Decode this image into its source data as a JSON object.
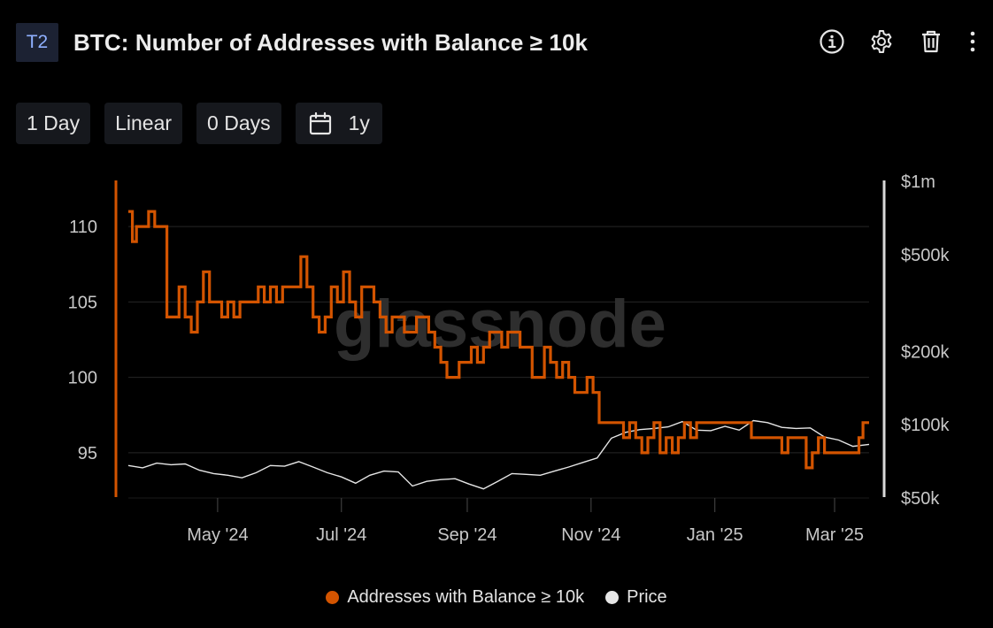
{
  "header": {
    "badge": "T2",
    "title": "BTC: Number of Addresses with Balance ≥ 10k",
    "actions": [
      "info-icon",
      "gear-icon",
      "trash-icon",
      "more-vertical-icon"
    ]
  },
  "toolbar": {
    "resolution": "1 Day",
    "scale": "Linear",
    "average": "0 Days",
    "range": "1y",
    "range_icon": "calendar-icon"
  },
  "watermark": "glassnode",
  "colors": {
    "background": "#000000",
    "addresses": "#d35400",
    "price": "#e6e6e6",
    "grid": "#262626",
    "axis_text": "#c8c8c8"
  },
  "chart_data": {
    "type": "line",
    "x_ticks": [
      "May '24",
      "Jul '24",
      "Sep '24",
      "Nov '24",
      "Jan '25",
      "Mar '25"
    ],
    "y_left": {
      "ticks": [
        95,
        100,
        105,
        110
      ],
      "range": [
        92,
        113
      ]
    },
    "y_right": {
      "scale": "log",
      "ticks": [
        "$50k",
        "$100k",
        "$200k",
        "$500k",
        "$1m"
      ],
      "tick_values": [
        50000,
        100000,
        200000,
        500000,
        1000000
      ],
      "range": [
        50000,
        1000000
      ]
    },
    "x_range": [
      "2024-03-18",
      "2025-03-18"
    ],
    "series": [
      {
        "name": "Addresses with Balance ≥ 10k",
        "axis": "left",
        "points": [
          [
            "2024-03-18",
            111
          ],
          [
            "2024-03-20",
            109
          ],
          [
            "2024-03-22",
            110
          ],
          [
            "2024-03-25",
            110
          ],
          [
            "2024-03-28",
            111
          ],
          [
            "2024-03-31",
            110
          ],
          [
            "2024-04-03",
            110
          ],
          [
            "2024-04-06",
            104
          ],
          [
            "2024-04-09",
            104
          ],
          [
            "2024-04-12",
            106
          ],
          [
            "2024-04-15",
            104
          ],
          [
            "2024-04-18",
            103
          ],
          [
            "2024-04-21",
            105
          ],
          [
            "2024-04-24",
            107
          ],
          [
            "2024-04-27",
            105
          ],
          [
            "2024-04-30",
            105
          ],
          [
            "2024-05-03",
            104
          ],
          [
            "2024-05-06",
            105
          ],
          [
            "2024-05-09",
            104
          ],
          [
            "2024-05-12",
            105
          ],
          [
            "2024-05-15",
            105
          ],
          [
            "2024-05-18",
            105
          ],
          [
            "2024-05-21",
            106
          ],
          [
            "2024-05-24",
            105
          ],
          [
            "2024-05-27",
            106
          ],
          [
            "2024-05-30",
            105
          ],
          [
            "2024-06-02",
            106
          ],
          [
            "2024-06-05",
            106
          ],
          [
            "2024-06-08",
            106
          ],
          [
            "2024-06-11",
            108
          ],
          [
            "2024-06-14",
            106
          ],
          [
            "2024-06-17",
            104
          ],
          [
            "2024-06-20",
            103
          ],
          [
            "2024-06-23",
            104
          ],
          [
            "2024-06-26",
            106
          ],
          [
            "2024-06-29",
            105
          ],
          [
            "2024-07-02",
            107
          ],
          [
            "2024-07-05",
            105
          ],
          [
            "2024-07-08",
            104
          ],
          [
            "2024-07-11",
            106
          ],
          [
            "2024-07-14",
            106
          ],
          [
            "2024-07-17",
            105
          ],
          [
            "2024-07-20",
            104
          ],
          [
            "2024-07-23",
            103
          ],
          [
            "2024-07-26",
            104
          ],
          [
            "2024-07-29",
            104
          ],
          [
            "2024-08-01",
            103
          ],
          [
            "2024-08-04",
            103
          ],
          [
            "2024-08-07",
            104
          ],
          [
            "2024-08-10",
            104
          ],
          [
            "2024-08-13",
            103
          ],
          [
            "2024-08-16",
            102
          ],
          [
            "2024-08-19",
            101
          ],
          [
            "2024-08-22",
            100
          ],
          [
            "2024-08-25",
            100
          ],
          [
            "2024-08-28",
            101
          ],
          [
            "2024-08-31",
            101
          ],
          [
            "2024-09-03",
            102
          ],
          [
            "2024-09-06",
            101
          ],
          [
            "2024-09-09",
            102
          ],
          [
            "2024-09-12",
            103
          ],
          [
            "2024-09-15",
            103
          ],
          [
            "2024-09-18",
            102
          ],
          [
            "2024-09-21",
            103
          ],
          [
            "2024-09-24",
            103
          ],
          [
            "2024-09-27",
            102
          ],
          [
            "2024-09-30",
            102
          ],
          [
            "2024-10-03",
            100
          ],
          [
            "2024-10-06",
            100
          ],
          [
            "2024-10-09",
            102
          ],
          [
            "2024-10-12",
            101
          ],
          [
            "2024-10-15",
            100
          ],
          [
            "2024-10-18",
            101
          ],
          [
            "2024-10-21",
            100
          ],
          [
            "2024-10-24",
            99
          ],
          [
            "2024-10-27",
            99
          ],
          [
            "2024-10-30",
            100
          ],
          [
            "2024-11-02",
            99
          ],
          [
            "2024-11-05",
            97
          ],
          [
            "2024-11-08",
            97
          ],
          [
            "2024-11-11",
            97
          ],
          [
            "2024-11-14",
            97
          ],
          [
            "2024-11-17",
            96
          ],
          [
            "2024-11-20",
            97
          ],
          [
            "2024-11-23",
            96
          ],
          [
            "2024-11-26",
            95
          ],
          [
            "2024-11-29",
            96
          ],
          [
            "2024-12-02",
            97
          ],
          [
            "2024-12-05",
            95
          ],
          [
            "2024-12-08",
            96
          ],
          [
            "2024-12-11",
            95
          ],
          [
            "2024-12-14",
            96
          ],
          [
            "2024-12-17",
            97
          ],
          [
            "2024-12-20",
            96
          ],
          [
            "2024-12-23",
            97
          ],
          [
            "2024-12-26",
            97
          ],
          [
            "2024-12-29",
            97
          ],
          [
            "2025-01-01",
            97
          ],
          [
            "2025-01-04",
            97
          ],
          [
            "2025-01-07",
            97
          ],
          [
            "2025-01-10",
            97
          ],
          [
            "2025-01-13",
            97
          ],
          [
            "2025-01-16",
            97
          ],
          [
            "2025-01-19",
            96
          ],
          [
            "2025-01-22",
            96
          ],
          [
            "2025-01-25",
            96
          ],
          [
            "2025-01-28",
            96
          ],
          [
            "2025-01-31",
            96
          ],
          [
            "2025-02-03",
            95
          ],
          [
            "2025-02-06",
            96
          ],
          [
            "2025-02-09",
            96
          ],
          [
            "2025-02-12",
            96
          ],
          [
            "2025-02-15",
            94
          ],
          [
            "2025-02-18",
            95
          ],
          [
            "2025-02-21",
            96
          ],
          [
            "2025-02-24",
            95
          ],
          [
            "2025-02-27",
            95
          ],
          [
            "2025-03-02",
            95
          ],
          [
            "2025-03-05",
            95
          ],
          [
            "2025-03-08",
            95
          ],
          [
            "2025-03-11",
            95
          ],
          [
            "2025-03-13",
            96
          ],
          [
            "2025-03-15",
            97
          ],
          [
            "2025-03-18",
            97
          ]
        ]
      },
      {
        "name": "Price",
        "axis": "right",
        "points": [
          [
            "2024-03-18",
            68000
          ],
          [
            "2024-03-25",
            66500
          ],
          [
            "2024-04-01",
            69500
          ],
          [
            "2024-04-08",
            68500
          ],
          [
            "2024-04-15",
            69000
          ],
          [
            "2024-04-22",
            65000
          ],
          [
            "2024-04-29",
            63000
          ],
          [
            "2024-05-06",
            62000
          ],
          [
            "2024-05-13",
            60500
          ],
          [
            "2024-05-20",
            63500
          ],
          [
            "2024-05-27",
            68000
          ],
          [
            "2024-06-03",
            67500
          ],
          [
            "2024-06-10",
            70500
          ],
          [
            "2024-06-17",
            67000
          ],
          [
            "2024-06-24",
            63500
          ],
          [
            "2024-07-01",
            61000
          ],
          [
            "2024-07-08",
            57500
          ],
          [
            "2024-07-15",
            62000
          ],
          [
            "2024-07-22",
            64500
          ],
          [
            "2024-07-29",
            64000
          ],
          [
            "2024-08-05",
            56000
          ],
          [
            "2024-08-12",
            58500
          ],
          [
            "2024-08-19",
            59500
          ],
          [
            "2024-08-26",
            60000
          ],
          [
            "2024-09-02",
            57000
          ],
          [
            "2024-09-09",
            54500
          ],
          [
            "2024-09-16",
            58500
          ],
          [
            "2024-09-23",
            63000
          ],
          [
            "2024-09-30",
            62500
          ],
          [
            "2024-10-07",
            62000
          ],
          [
            "2024-10-14",
            64500
          ],
          [
            "2024-10-21",
            67000
          ],
          [
            "2024-10-28",
            70000
          ],
          [
            "2024-11-04",
            73000
          ],
          [
            "2024-11-11",
            88000
          ],
          [
            "2024-11-18",
            93000
          ],
          [
            "2024-11-25",
            95500
          ],
          [
            "2024-12-02",
            96500
          ],
          [
            "2024-12-09",
            98000
          ],
          [
            "2024-12-16",
            103000
          ],
          [
            "2024-12-23",
            95000
          ],
          [
            "2024-12-30",
            94500
          ],
          [
            "2025-01-06",
            98500
          ],
          [
            "2025-01-13",
            95000
          ],
          [
            "2025-01-20",
            104000
          ],
          [
            "2025-01-27",
            102000
          ],
          [
            "2025-02-03",
            97500
          ],
          [
            "2025-02-10",
            96500
          ],
          [
            "2025-02-17",
            97000
          ],
          [
            "2025-02-24",
            89000
          ],
          [
            "2025-03-03",
            86500
          ],
          [
            "2025-03-10",
            81500
          ],
          [
            "2025-03-18",
            83000
          ]
        ]
      }
    ],
    "grid": true,
    "legend": "bottom-center"
  },
  "legend": [
    {
      "label": "Addresses with Balance ≥ 10k",
      "color": "#d35400"
    },
    {
      "label": "Price",
      "color": "#e6e6e6"
    }
  ]
}
